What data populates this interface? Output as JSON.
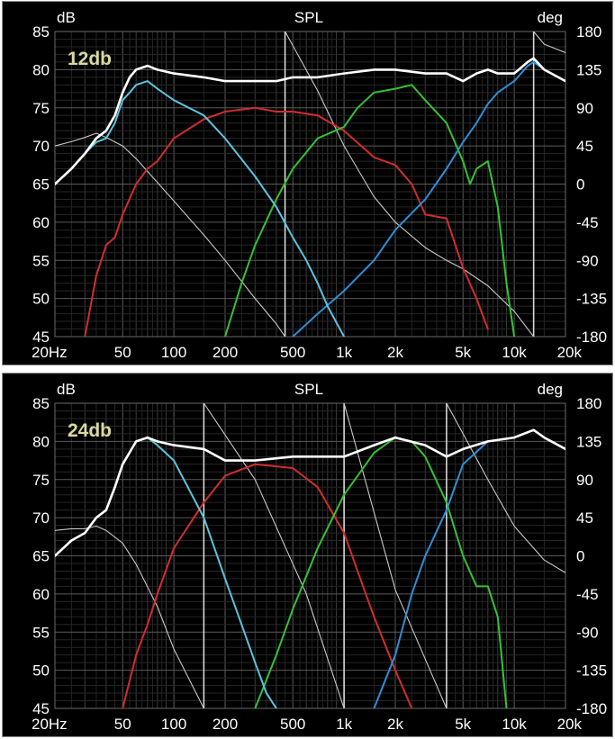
{
  "chart_data": [
    {
      "type": "line",
      "title": "SPL",
      "annotation": "12db",
      "left_axis_unit": "dB",
      "right_axis_unit": "deg",
      "xscale": "log",
      "xlim": [
        20,
        20000
      ],
      "ylim": [
        45,
        85
      ],
      "y2lim": [
        -180,
        180
      ],
      "xticks": [
        20,
        50,
        100,
        200,
        500,
        1000,
        2000,
        5000,
        10000,
        20000
      ],
      "xtick_labels": [
        "20Hz",
        "50",
        "100",
        "200",
        "500",
        "1k",
        "2k",
        "5k",
        "10k",
        "20k"
      ],
      "yticks": [
        45,
        50,
        55,
        60,
        65,
        70,
        75,
        80,
        85
      ],
      "y2ticks": [
        -180,
        -135,
        -90,
        -45,
        0,
        45,
        90,
        135,
        180
      ],
      "grid": true,
      "colors": {
        "sum": "#ffffff",
        "woofer": "#5cc3dc",
        "mid": "#d22d2d",
        "tweeter": "#34c234",
        "super_tweeter": "#2f8fd6",
        "phase": "#c8c8c8",
        "markers": "#d8d8d8"
      },
      "markers_hz": [
        450,
        13000
      ],
      "series": [
        {
          "key": "sum",
          "axis": "dB",
          "x": [
            20,
            25,
            30,
            35,
            40,
            45,
            50,
            55,
            60,
            70,
            80,
            100,
            150,
            200,
            300,
            400,
            500,
            700,
            1000,
            1500,
            2000,
            3000,
            4000,
            5000,
            6000,
            7000,
            8000,
            10000,
            12000,
            13000,
            15000,
            20000
          ],
          "y": [
            65,
            67,
            69,
            71,
            72,
            74,
            77,
            79,
            80,
            80.5,
            80,
            79.5,
            79,
            78.5,
            78.5,
            78.5,
            79,
            79,
            79.5,
            80,
            80,
            79.5,
            79.5,
            78.5,
            79.5,
            80,
            79.5,
            79.5,
            81,
            81.5,
            80,
            78.5
          ]
        },
        {
          "key": "woofer",
          "axis": "dB",
          "x": [
            20,
            25,
            30,
            35,
            40,
            45,
            50,
            55,
            60,
            70,
            80,
            100,
            150,
            200,
            300,
            400,
            500,
            600,
            700,
            800,
            1000
          ],
          "y": [
            65,
            67,
            69,
            70.5,
            71,
            73,
            76,
            77,
            78,
            78.5,
            77.5,
            76,
            74,
            71,
            66,
            62,
            58,
            55,
            52,
            49,
            45
          ]
        },
        {
          "key": "mid",
          "axis": "dB",
          "x": [
            30,
            35,
            40,
            45,
            50,
            60,
            70,
            80,
            100,
            150,
            200,
            300,
            400,
            500,
            700,
            1000,
            1500,
            2000,
            2500,
            3000,
            4000,
            5000,
            6000,
            7000
          ],
          "y": [
            45,
            53,
            57,
            58,
            61,
            65,
            67,
            68,
            71,
            73.5,
            74.5,
            75,
            74.5,
            74.5,
            74,
            72,
            68.5,
            67.5,
            65,
            61,
            60.5,
            54,
            50,
            46
          ]
        },
        {
          "key": "tweeter",
          "axis": "dB",
          "x": [
            200,
            250,
            300,
            400,
            500,
            700,
            1000,
            1200,
            1500,
            2000,
            2500,
            3000,
            4000,
            5000,
            5500,
            6000,
            7000,
            8000,
            9000,
            10000
          ],
          "y": [
            45,
            52,
            57,
            63,
            67,
            71,
            72.5,
            75,
            77,
            77.5,
            78,
            76,
            73,
            68,
            65,
            67,
            68,
            62,
            52,
            45
          ]
        },
        {
          "key": "super_tweeter",
          "axis": "dB",
          "x": [
            500,
            700,
            1000,
            1500,
            2000,
            3000,
            4000,
            5000,
            6000,
            7000,
            8000,
            10000,
            12000,
            13000,
            15000,
            20000
          ],
          "y": [
            45,
            48,
            51,
            55,
            59,
            63,
            67,
            70.5,
            73,
            75.5,
            77,
            78.5,
            80.5,
            81,
            80,
            78.5
          ]
        },
        {
          "key": "phase",
          "axis": "deg",
          "x": [
            20,
            25,
            30,
            35,
            40,
            50,
            60,
            70,
            100,
            150,
            200,
            300,
            400,
            450,
            450,
            700,
            1000,
            1500,
            2000,
            3000,
            4000,
            5000,
            7000,
            10000,
            13000,
            13000,
            15000,
            20000
          ],
          "y": [
            45,
            50,
            55,
            60,
            55,
            45,
            30,
            15,
            -20,
            -60,
            -90,
            -135,
            -165,
            -180,
            180,
            110,
            45,
            -15,
            -45,
            -75,
            -90,
            -100,
            -120,
            -150,
            -180,
            180,
            165,
            155
          ]
        }
      ]
    },
    {
      "type": "line",
      "title": "SPL",
      "annotation": "24db",
      "left_axis_unit": "dB",
      "right_axis_unit": "deg",
      "xscale": "log",
      "xlim": [
        20,
        20000
      ],
      "ylim": [
        45,
        85
      ],
      "y2lim": [
        -180,
        180
      ],
      "xticks": [
        20,
        50,
        100,
        200,
        500,
        1000,
        2000,
        5000,
        10000,
        20000
      ],
      "xtick_labels": [
        "20Hz",
        "50",
        "100",
        "200",
        "500",
        "1k",
        "2k",
        "5k",
        "10k",
        "20k"
      ],
      "yticks": [
        45,
        50,
        55,
        60,
        65,
        70,
        75,
        80,
        85
      ],
      "y2ticks": [
        -180,
        -135,
        -90,
        -45,
        0,
        45,
        90,
        135,
        180
      ],
      "grid": true,
      "colors": {
        "sum": "#ffffff",
        "woofer": "#5cc3dc",
        "mid": "#d22d2d",
        "tweeter": "#34c234",
        "super_tweeter": "#2f8fd6",
        "phase": "#c8c8c8",
        "markers": "#d8d8d8"
      },
      "markers_hz": [
        150,
        1000,
        4000
      ],
      "series": [
        {
          "key": "sum",
          "axis": "dB",
          "x": [
            20,
            25,
            30,
            35,
            40,
            45,
            50,
            60,
            70,
            80,
            100,
            150,
            200,
            300,
            500,
            700,
            1000,
            1500,
            2000,
            3000,
            4000,
            5000,
            7000,
            10000,
            13000,
            15000,
            20000
          ],
          "y": [
            65,
            67,
            68,
            70,
            71,
            74,
            77,
            80,
            80.5,
            80,
            79.5,
            79,
            77.5,
            77.5,
            78,
            78,
            78,
            79.5,
            80.5,
            79.5,
            78,
            79,
            80,
            80.5,
            81.5,
            80.5,
            79
          ]
        },
        {
          "key": "woofer",
          "axis": "dB",
          "x": [
            20,
            25,
            30,
            35,
            40,
            45,
            50,
            60,
            70,
            80,
            100,
            150,
            200,
            250,
            300,
            350,
            400
          ],
          "y": [
            65,
            67,
            68,
            70,
            71,
            74,
            77,
            80,
            80.5,
            79.5,
            77.5,
            70,
            62,
            56,
            51,
            47,
            45
          ]
        },
        {
          "key": "mid",
          "axis": "dB",
          "x": [
            50,
            60,
            70,
            80,
            100,
            150,
            200,
            300,
            500,
            700,
            1000,
            1200,
            1500,
            2000,
            2500
          ],
          "y": [
            45,
            52,
            56,
            60,
            66,
            72,
            75.5,
            77,
            76.5,
            74,
            68,
            63,
            57,
            50,
            45
          ]
        },
        {
          "key": "tweeter",
          "axis": "dB",
          "x": [
            300,
            400,
            500,
            700,
            1000,
            1500,
            2000,
            2500,
            3000,
            4000,
            5000,
            6000,
            7000,
            8000,
            9000
          ],
          "y": [
            45,
            52,
            58,
            66,
            73,
            78.5,
            80.5,
            80,
            78,
            72,
            65,
            61,
            61,
            57,
            45
          ]
        },
        {
          "key": "super_tweeter",
          "axis": "dB",
          "x": [
            1500,
            2000,
            2500,
            3000,
            4000,
            5000,
            7000,
            10000,
            13000,
            15000,
            20000
          ],
          "y": [
            45,
            52,
            60,
            65,
            71,
            77,
            80,
            80.5,
            81.5,
            80.5,
            79
          ]
        },
        {
          "key": "phase",
          "axis": "deg",
          "x": [
            20,
            25,
            30,
            35,
            40,
            50,
            60,
            80,
            100,
            150,
            150,
            300,
            600,
            1000,
            1000,
            2000,
            4000,
            4000,
            7000,
            10000,
            15000,
            20000
          ],
          "y": [
            30,
            32,
            32,
            35,
            30,
            15,
            -10,
            -60,
            -110,
            -180,
            180,
            90,
            -45,
            -180,
            180,
            -40,
            -180,
            180,
            90,
            35,
            -5,
            -20
          ]
        }
      ]
    }
  ]
}
